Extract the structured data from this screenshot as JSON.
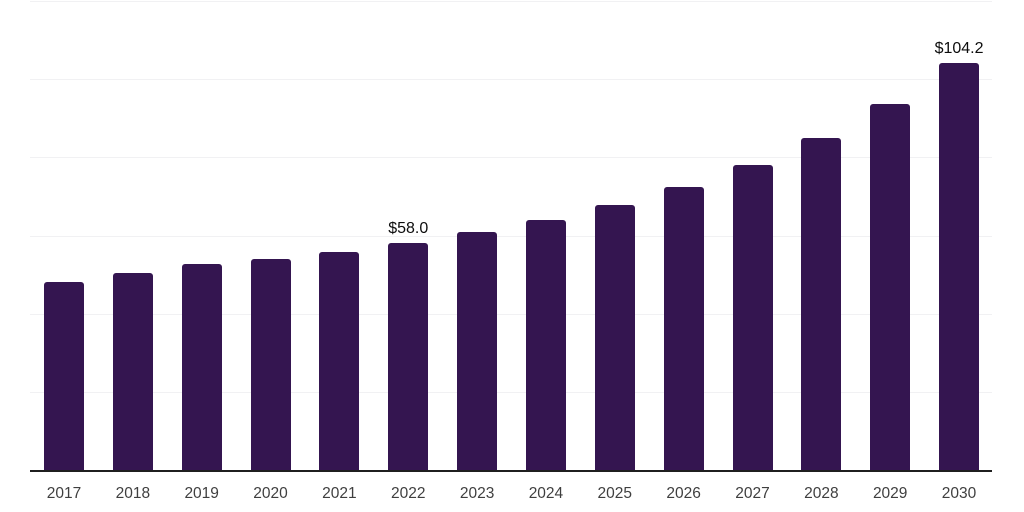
{
  "chart_data": {
    "type": "bar",
    "title": "",
    "xlabel": "",
    "ylabel": "",
    "categories": [
      "2017",
      "2018",
      "2019",
      "2020",
      "2021",
      "2022",
      "2023",
      "2024",
      "2025",
      "2026",
      "2027",
      "2028",
      "2029",
      "2030"
    ],
    "values": [
      48.0,
      50.4,
      52.7,
      54.0,
      55.8,
      58.0,
      60.9,
      64.0,
      67.8,
      72.4,
      78.0,
      85.0,
      93.6,
      104.2
    ],
    "data_labels": {
      "2022": "$58.0",
      "2030": "$104.2"
    },
    "ylim": [
      0,
      120
    ],
    "gridline_step": 20,
    "grid": "horizontal-only",
    "legend": "none",
    "y_axis_labels_shown": false,
    "colors": {
      "bar": "#341550",
      "gridline": "#f1f1f3",
      "axis_line": "#1f1f1f",
      "tick_label": "#3f3f3f",
      "data_label": "#0d0d0d",
      "background": "#ffffff"
    }
  }
}
